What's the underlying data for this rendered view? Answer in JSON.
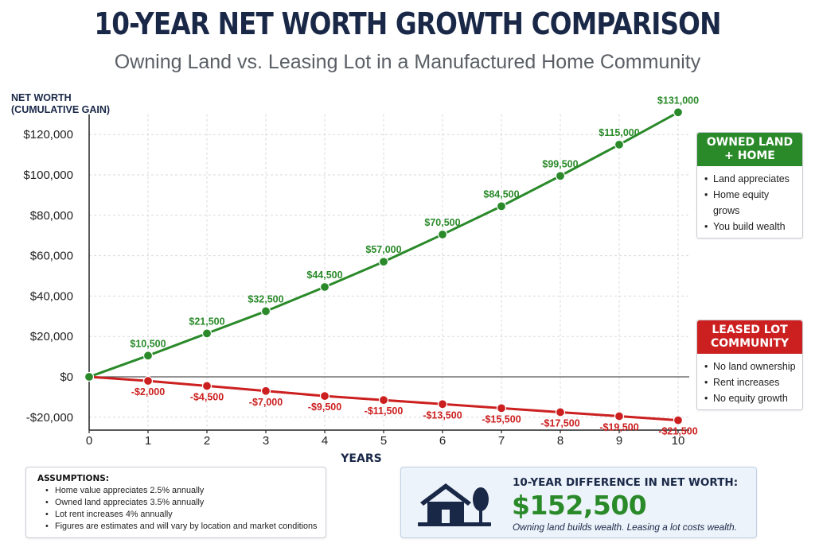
{
  "header": {
    "title": "10-YEAR NET WORTH GROWTH COMPARISON",
    "subtitle": "Owning Land vs. Leasing Lot in a Manufactured Home Community"
  },
  "chart_data": {
    "type": "line",
    "ylabel": "NET WORTH\n(CUMULATIVE GAIN)",
    "xlabel": "YEARS",
    "x": [
      0,
      1,
      2,
      3,
      4,
      5,
      6,
      7,
      8,
      9,
      10
    ],
    "ylim": [
      -25000,
      130000
    ],
    "yticks": [
      -20000,
      0,
      20000,
      40000,
      60000,
      80000,
      100000,
      120000
    ],
    "ytick_labels": [
      "-$20,000",
      "$0",
      "$20,000",
      "$40,000",
      "$60,000",
      "$80,000",
      "$100,000",
      "$120,000"
    ],
    "grid": true,
    "series": [
      {
        "key": "owned",
        "color": "#2a8a2a",
        "values": [
          0,
          10500,
          21500,
          32500,
          44500,
          57000,
          70500,
          84500,
          99500,
          115000,
          131000
        ],
        "labels": [
          "",
          "$10,500",
          "$21,500",
          "$32,500",
          "$44,500",
          "$57,000",
          "$70,500",
          "$84,500",
          "$99,500",
          "$115,000",
          "$131,000"
        ]
      },
      {
        "key": "leased",
        "color": "#cc2020",
        "values": [
          0,
          -2000,
          -4500,
          -7000,
          -9500,
          -11500,
          -13500,
          -15500,
          -17500,
          -19500,
          -21500
        ],
        "labels": [
          "",
          "-$2,000",
          "-$4,500",
          "-$7,000",
          "-$9,500",
          "-$11,500",
          "-$13,500",
          "-$15,500",
          "-$17,500",
          "-$19,500",
          "-$21,500"
        ]
      }
    ]
  },
  "legend": {
    "owned": {
      "title": "OWNED LAND\n+ HOME",
      "color": "#2a8a2a",
      "items": [
        "Land appreciates",
        "Home equity grows",
        "You build wealth"
      ]
    },
    "leased": {
      "title": "LEASED LOT\nCOMMUNITY",
      "color": "#cc2020",
      "items": [
        "No land ownership",
        "Rent increases",
        "No equity growth"
      ]
    }
  },
  "assumptions": {
    "title": "ASSUMPTIONS:",
    "items": [
      "Home value appreciates 2.5% annually",
      "Owned land appreciates 3.5% annually",
      "Lot rent increases 4% annually",
      "Figures are estimates and will vary by location and market conditions"
    ]
  },
  "difference": {
    "label": "10-YEAR DIFFERENCE IN NET WORTH:",
    "value": "$152,500",
    "note": "Owning land builds wealth. Leasing a lot costs wealth.",
    "icon": "house-and-tree-icon",
    "icon_color": "#1a2848"
  }
}
